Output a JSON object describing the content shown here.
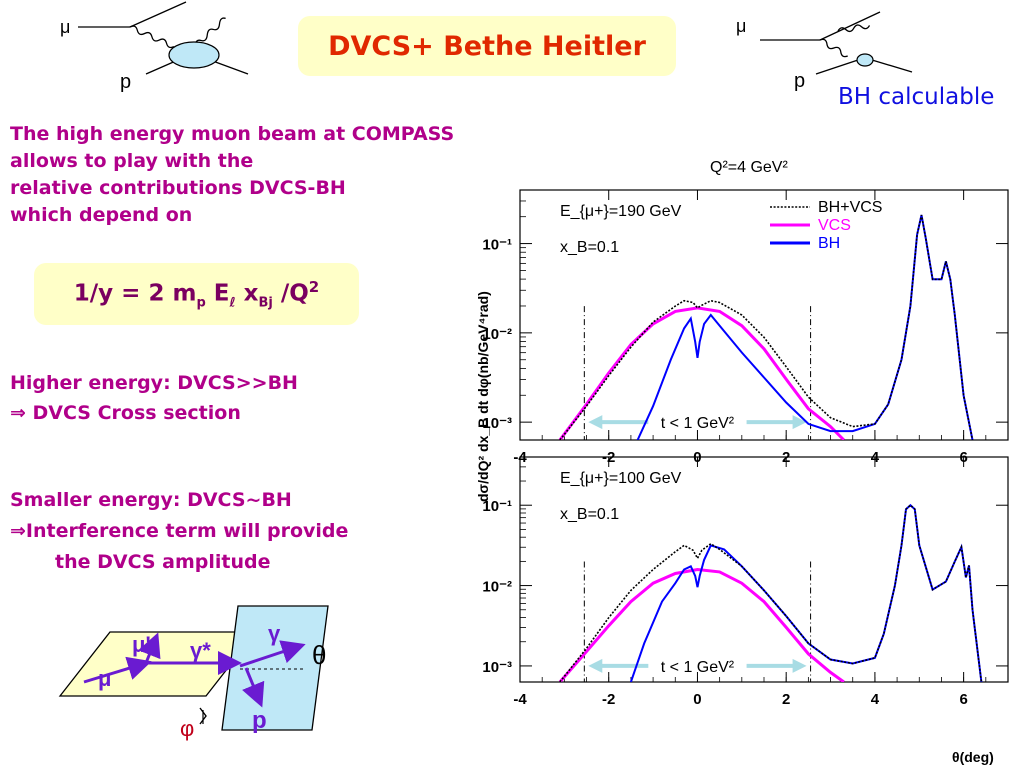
{
  "title": "DVCS+ Bethe Heitler",
  "feynman_left": {
    "mu": "μ",
    "p": "p"
  },
  "feynman_right": {
    "mu": "μ",
    "p": "p",
    "caption": "BH calculable"
  },
  "intro": {
    "lines": [
      "The high energy muon beam at COMPASS",
      "allows to play with the",
      "relative contributions DVCS-BH",
      "which depend on"
    ]
  },
  "formula": {
    "pre": "1/y = 2 m",
    "sub_p": "p",
    "E": " E",
    "sub_l": "ℓ",
    "x": " x",
    "sub_bj": "Bj",
    "post": " /Q",
    "sup": "2"
  },
  "higher": {
    "line1": "Higher energy: DVCS>>BH",
    "line2": "⇒ DVCS Cross section"
  },
  "smaller": {
    "line1": "Smaller energy: DVCS~BH",
    "line2": "⇒Interference term will provide",
    "line3": "the DVCS amplitude"
  },
  "kinematics": {
    "mu": "μ",
    "mu_prime": "μ'",
    "gamma_star": "γ*",
    "gamma": "γ",
    "theta": "θ",
    "p": "p",
    "phi": "φ"
  },
  "plot_header": "Q²=4 GeV²",
  "ylabel": "dσ/dQ² dx_B dt dφ(nb/GeV⁴rad)",
  "xlabel": "θ(deg)",
  "legend": [
    {
      "name": "BH+VCS",
      "color": "#000000",
      "style": "dotted"
    },
    {
      "name": "VCS",
      "color": "#ff00ff",
      "style": "solid"
    },
    {
      "name": "BH",
      "color": "#0000ff",
      "style": "solid"
    }
  ],
  "chart_data": [
    {
      "type": "line",
      "panel": "top",
      "annotation_energy": "E_{μ+}=190 GeV",
      "annotation_xb": "x_B=0.1",
      "annotation_t": "t < 1 GeV²",
      "x_ticks": [
        "-4",
        "-2",
        "0",
        "2",
        "4",
        "6"
      ],
      "y_tick_labels": [
        "10⁻¹",
        "10⁻²",
        "10⁻³"
      ],
      "xlim": [
        -4,
        7
      ],
      "log_ylim": [
        -3.2,
        -0.4
      ],
      "cut_lines_x": [
        -2.55,
        2.55
      ],
      "series": [
        {
          "name": "BH+VCS",
          "x": [
            -3.1,
            -2.5,
            -2,
            -1.5,
            -1,
            -0.5,
            -0.3,
            -0.1,
            0,
            0.1,
            0.3,
            0.5,
            1,
            1.5,
            2,
            2.5,
            3,
            3.5,
            4,
            4.3,
            4.6,
            4.8,
            4.95,
            5.05,
            5.15,
            5.3,
            5.5,
            5.6,
            5.7,
            5.8,
            6,
            6.2
          ],
          "log_y": [
            -3.2,
            -2.82,
            -2.48,
            -2.16,
            -1.88,
            -1.7,
            -1.64,
            -1.66,
            -1.72,
            -1.69,
            -1.64,
            -1.66,
            -1.8,
            -2.05,
            -2.38,
            -2.72,
            -2.95,
            -3.05,
            -3.02,
            -2.8,
            -2.3,
            -1.7,
            -0.9,
            -0.68,
            -0.95,
            -1.4,
            -1.4,
            -1.2,
            -1.4,
            -1.8,
            -2.7,
            -3.2
          ]
        },
        {
          "name": "VCS",
          "x": [
            -3.1,
            -2.5,
            -2,
            -1.5,
            -1,
            -0.5,
            0,
            0.5,
            1,
            1.5,
            2,
            2.5,
            3,
            3.3
          ],
          "log_y": [
            -3.2,
            -2.8,
            -2.45,
            -2.13,
            -1.9,
            -1.76,
            -1.72,
            -1.76,
            -1.92,
            -2.18,
            -2.52,
            -2.85,
            -3.05,
            -3.2
          ]
        },
        {
          "name": "BH",
          "x": [
            -1.35,
            -1,
            -0.6,
            -0.3,
            -0.15,
            -0.05,
            0,
            0.05,
            0.15,
            0.3,
            0.6,
            1,
            1.5,
            2,
            2.5,
            3,
            3.5,
            4,
            4.3,
            4.6,
            4.8,
            4.95,
            5.05,
            5.15,
            5.3,
            5.5,
            5.6,
            5.7,
            5.8,
            6,
            6.2
          ],
          "log_y": [
            -3.2,
            -2.82,
            -2.3,
            -1.95,
            -1.84,
            -2.1,
            -2.28,
            -2.1,
            -1.9,
            -1.8,
            -1.98,
            -2.22,
            -2.5,
            -2.78,
            -3.02,
            -3.1,
            -3.1,
            -3.02,
            -2.8,
            -2.3,
            -1.7,
            -0.9,
            -0.68,
            -0.95,
            -1.4,
            -1.4,
            -1.2,
            -1.4,
            -1.8,
            -2.7,
            -3.2
          ]
        }
      ]
    },
    {
      "type": "line",
      "panel": "bottom",
      "annotation_energy": "E_{μ+}=100 GeV",
      "annotation_xb": "x_B=0.1",
      "annotation_t": "t < 1 GeV²",
      "x_ticks": [
        "-4",
        "-2",
        "0",
        "2",
        "4",
        "6"
      ],
      "y_tick_labels": [
        "10⁻¹",
        "10⁻²",
        "10⁻³"
      ],
      "xlim": [
        -4,
        7
      ],
      "log_ylim": [
        -3.2,
        -0.4
      ],
      "cut_lines_x": [
        -2.55,
        2.55
      ],
      "series": [
        {
          "name": "BH+VCS",
          "x": [
            -3.1,
            -2.5,
            -2,
            -1.5,
            -1,
            -0.5,
            -0.3,
            -0.1,
            0,
            0.1,
            0.3,
            0.5,
            1,
            1.5,
            2,
            2.5,
            3,
            3.5,
            4,
            4.2,
            4.45,
            4.6,
            4.7,
            4.8,
            4.9,
            5,
            5.3,
            5.6,
            5.8,
            5.95,
            6.05,
            6.12,
            6.2,
            6.4
          ],
          "log_y": [
            -3.2,
            -2.78,
            -2.4,
            -2.06,
            -1.8,
            -1.58,
            -1.5,
            -1.56,
            -1.66,
            -1.56,
            -1.48,
            -1.55,
            -1.76,
            -2.06,
            -2.38,
            -2.72,
            -2.92,
            -2.97,
            -2.9,
            -2.6,
            -2.0,
            -1.5,
            -1.05,
            -1.0,
            -1.05,
            -1.5,
            -2.05,
            -1.95,
            -1.7,
            -1.52,
            -1.9,
            -1.75,
            -2.3,
            -3.2
          ]
        },
        {
          "name": "VCS",
          "x": [
            -3.1,
            -2.5,
            -2,
            -1.5,
            -1,
            -0.5,
            0,
            0.5,
            1,
            1.5,
            2,
            2.5,
            3,
            3.3
          ],
          "log_y": [
            -3.2,
            -2.82,
            -2.5,
            -2.2,
            -1.97,
            -1.85,
            -1.8,
            -1.83,
            -1.97,
            -2.2,
            -2.52,
            -2.85,
            -3.08,
            -3.2
          ]
        },
        {
          "name": "BH",
          "x": [
            -1.5,
            -1.2,
            -0.8,
            -0.5,
            -0.3,
            -0.15,
            -0.05,
            0,
            0.05,
            0.15,
            0.3,
            0.6,
            1,
            1.5,
            2,
            2.5,
            3,
            3.5,
            4,
            4.2,
            4.45,
            4.6,
            4.7,
            4.8,
            4.9,
            5,
            5.3,
            5.6,
            5.8,
            5.95,
            6.05,
            6.12,
            6.2,
            6.4
          ],
          "log_y": [
            -3.2,
            -2.72,
            -2.2,
            -1.97,
            -1.8,
            -1.76,
            -1.88,
            -2.02,
            -1.88,
            -1.68,
            -1.5,
            -1.55,
            -1.76,
            -2.06,
            -2.38,
            -2.72,
            -2.92,
            -2.97,
            -2.9,
            -2.6,
            -2.0,
            -1.5,
            -1.05,
            -1.0,
            -1.05,
            -1.5,
            -2.05,
            -1.95,
            -1.7,
            -1.52,
            -1.9,
            -1.75,
            -2.3,
            -3.2
          ]
        }
      ]
    }
  ]
}
